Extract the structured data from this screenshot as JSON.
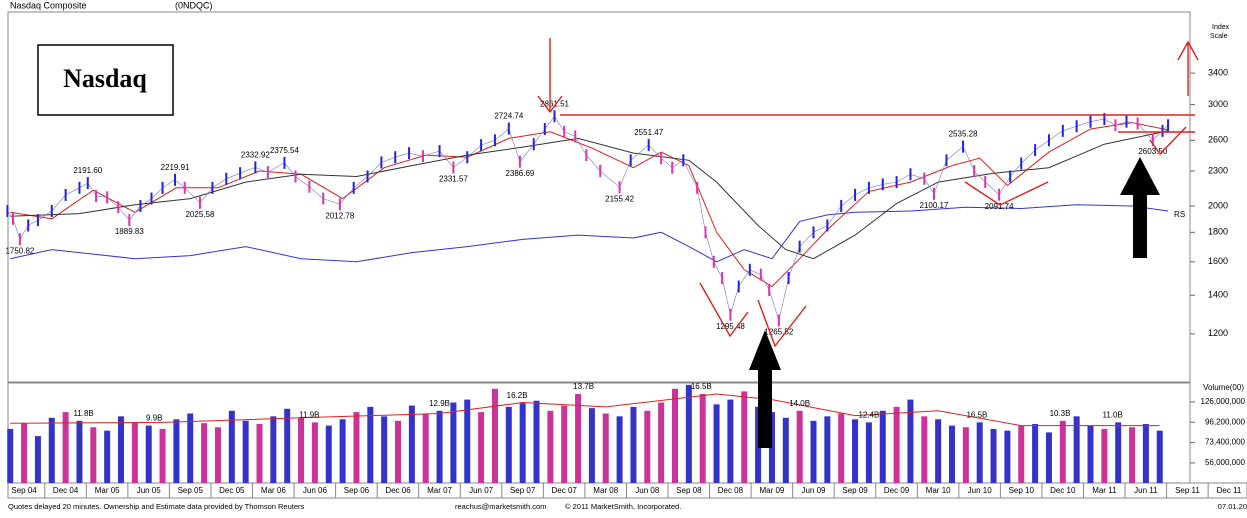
{
  "chart_data": {
    "type": "stock",
    "title": "Nasdaq Composite",
    "symbol": "(0NDQC)",
    "badge": "Nasdaq",
    "y_axis_label": [
      "Index",
      "Scale"
    ],
    "log_scale": true,
    "xlim": [
      -1.16,
      88.3
    ],
    "xticks": [
      {
        "value": 0,
        "label": "Sep 04"
      },
      {
        "value": 3,
        "label": "Dec 04"
      },
      {
        "value": 6,
        "label": "Mar 05"
      },
      {
        "value": 9,
        "label": "Jun 05"
      },
      {
        "value": 12,
        "label": "Sep 05"
      },
      {
        "value": 15,
        "label": "Dec 05"
      },
      {
        "value": 18,
        "label": "Mar 06"
      },
      {
        "value": 21,
        "label": "Jun 06"
      },
      {
        "value": 24,
        "label": "Sep 06"
      },
      {
        "value": 27,
        "label": "Dec 06"
      },
      {
        "value": 30,
        "label": "Mar 07"
      },
      {
        "value": 33,
        "label": "Jun 07"
      },
      {
        "value": 36,
        "label": "Sep 07"
      },
      {
        "value": 39,
        "label": "Dec 07"
      },
      {
        "value": 42,
        "label": "Mar 08"
      },
      {
        "value": 45,
        "label": "Jun 08"
      },
      {
        "value": 48,
        "label": "Sep 08"
      },
      {
        "value": 51,
        "label": "Dec 08"
      },
      {
        "value": 54,
        "label": "Mar 09"
      },
      {
        "value": 57,
        "label": "Jun 09"
      },
      {
        "value": 60,
        "label": "Sep 09"
      },
      {
        "value": 63,
        "label": "Dec 09"
      },
      {
        "value": 66,
        "label": "Mar 10"
      },
      {
        "value": 69,
        "label": "Jun 10"
      },
      {
        "value": 72,
        "label": "Sep 10"
      },
      {
        "value": 75,
        "label": "Dec 10"
      },
      {
        "value": 78,
        "label": "Mar 11"
      },
      {
        "value": 81,
        "label": "Jun 11"
      },
      {
        "value": 84,
        "label": "Sep 11"
      },
      {
        "value": 87,
        "label": "Dec 11"
      }
    ],
    "ylim": [
      990,
      4340
    ],
    "yticks": [
      1200,
      1400,
      1600,
      1800,
      2000,
      2300,
      2600,
      3000,
      3400
    ],
    "price": {
      "up_color": "#2222dd",
      "down_color": "#dd33aa",
      "x": [
        -1.2,
        -0.8,
        -0.3,
        0.3,
        1,
        2,
        3,
        4,
        4.6,
        5.2,
        6,
        6.8,
        7.6,
        8.4,
        9.2,
        10,
        10.9,
        11.6,
        12.7,
        13.6,
        14.6,
        15.6,
        16.7,
        17.6,
        18.8,
        19.6,
        20.6,
        21.6,
        22.8,
        23.8,
        24.8,
        25.8,
        26.8,
        27.8,
        28.8,
        30,
        31,
        32,
        33,
        34,
        35,
        35.8,
        36.8,
        37.6,
        38.3,
        39,
        39.8,
        40.6,
        41.6,
        43,
        43.8,
        45.1,
        46,
        46.8,
        47.6,
        48.6,
        49.2,
        49.8,
        50.4,
        51,
        51.6,
        52.4,
        53.2,
        53.8,
        54.5,
        55.2,
        56,
        57,
        58,
        59,
        60,
        61,
        62,
        63,
        64,
        65,
        65.7,
        66.6,
        67.8,
        68.6,
        69.4,
        70.4,
        71.2,
        72,
        73,
        74,
        75,
        76,
        77,
        78,
        78.8,
        79.6,
        80.4,
        81.5,
        82.2,
        82.6
      ],
      "values": [
        1960,
        1900,
        1751,
        1850,
        1890,
        1960,
        2090,
        2150,
        2192,
        2080,
        2070,
        1990,
        1890,
        2000,
        2060,
        2150,
        2220,
        2150,
        2026,
        2150,
        2230,
        2280,
        2333,
        2290,
        2376,
        2250,
        2160,
        2060,
        2013,
        2150,
        2250,
        2380,
        2430,
        2470,
        2440,
        2490,
        2332,
        2430,
        2550,
        2600,
        2725,
        2387,
        2560,
        2720,
        2862,
        2690,
        2640,
        2450,
        2300,
        2155,
        2400,
        2552,
        2420,
        2330,
        2400,
        2150,
        1800,
        1600,
        1500,
        1295,
        1450,
        1550,
        1520,
        1430,
        1266,
        1500,
        1700,
        1800,
        1850,
        2000,
        2090,
        2150,
        2180,
        2200,
        2270,
        2230,
        2100,
        2400,
        2535,
        2300,
        2200,
        2092,
        2250,
        2370,
        2500,
        2600,
        2700,
        2750,
        2800,
        2830,
        2760,
        2800,
        2780,
        2604,
        2700,
        2760
      ]
    },
    "moving_averages": [
      {
        "color": "#e02020",
        "x": [
          -1,
          2,
          5,
          8,
          11,
          14,
          17,
          20,
          23,
          26,
          29,
          32,
          35,
          38,
          41,
          44,
          46,
          48,
          50,
          52,
          54,
          56,
          58,
          61,
          64,
          67,
          69,
          71,
          74,
          77,
          80,
          82.6
        ],
        "values": [
          1950,
          1900,
          2130,
          1950,
          2150,
          2150,
          2300,
          2270,
          2060,
          2330,
          2450,
          2430,
          2620,
          2690,
          2520,
          2330,
          2480,
          2350,
          1800,
          1550,
          1450,
          1620,
          1820,
          2120,
          2200,
          2350,
          2420,
          2170,
          2480,
          2720,
          2790,
          2710
        ]
      },
      {
        "color": "#333333",
        "x": [
          -1,
          4,
          8,
          12,
          16,
          20,
          24,
          28,
          32,
          36,
          40,
          44,
          48,
          50,
          53,
          55,
          57,
          60,
          63,
          66,
          70,
          74,
          78,
          82.6
        ],
        "values": [
          1920,
          1940,
          2010,
          2060,
          2200,
          2270,
          2250,
          2350,
          2450,
          2530,
          2620,
          2470,
          2400,
          2200,
          1850,
          1680,
          1620,
          1780,
          2020,
          2200,
          2280,
          2330,
          2560,
          2700
        ]
      }
    ],
    "rs": {
      "label": "RS",
      "color": "#3333dd",
      "x": [
        -1,
        2,
        5,
        8,
        12,
        16,
        20,
        24,
        28,
        32,
        36,
        40,
        44,
        46,
        48,
        50,
        52,
        54,
        56,
        58,
        60,
        64,
        68,
        72,
        76,
        80,
        82.6
      ],
      "values": [
        1620,
        1680,
        1650,
        1620,
        1640,
        1700,
        1620,
        1600,
        1660,
        1700,
        1750,
        1780,
        1760,
        1800,
        1700,
        1600,
        1680,
        1620,
        1880,
        1930,
        1950,
        1960,
        1990,
        1980,
        2010,
        2000,
        1960
      ]
    },
    "annotations": [
      {
        "label": "1750.82",
        "x": -0.3,
        "value": 1750.82,
        "pos": "below"
      },
      {
        "label": "2191.60",
        "x": 4.6,
        "value": 2191.6,
        "pos": "above"
      },
      {
        "label": "1889.83",
        "x": 7.6,
        "value": 1889.83,
        "pos": "below"
      },
      {
        "label": "2219.91",
        "x": 10.9,
        "value": 2219.91,
        "pos": "above"
      },
      {
        "label": "2025.58",
        "x": 12.7,
        "value": 2025.58,
        "pos": "below"
      },
      {
        "label": "2332.92",
        "x": 16.7,
        "value": 2332.92,
        "pos": "above"
      },
      {
        "label": "2375.54",
        "x": 18.8,
        "value": 2375.54,
        "pos": "above"
      },
      {
        "label": "2012.78",
        "x": 22.8,
        "value": 2012.78,
        "pos": "below"
      },
      {
        "label": "2331.57",
        "x": 31,
        "value": 2331.57,
        "pos": "below"
      },
      {
        "label": "2724.74",
        "x": 35,
        "value": 2724.74,
        "pos": "above"
      },
      {
        "label": "2386.69",
        "x": 35.8,
        "value": 2386.69,
        "pos": "below"
      },
      {
        "label": "2861.51",
        "x": 38.3,
        "value": 2861.51,
        "pos": "above"
      },
      {
        "label": "2155.42",
        "x": 43,
        "value": 2155.42,
        "pos": "below"
      },
      {
        "label": "2551.47",
        "x": 45.1,
        "value": 2551.47,
        "pos": "above"
      },
      {
        "label": "1295.48",
        "x": 51,
        "value": 1295.48,
        "pos": "below"
      },
      {
        "label": "1265.52",
        "x": 54.5,
        "value": 1265.52,
        "pos": "below"
      },
      {
        "label": "2100.17",
        "x": 65.7,
        "value": 2100.17,
        "pos": "below"
      },
      {
        "label": "2535.28",
        "x": 67.8,
        "value": 2535.28,
        "pos": "above"
      },
      {
        "label": "2091.74",
        "x": 70.4,
        "value": 2091.74,
        "pos": "below"
      },
      {
        "label": "2603.50",
        "x": 81.5,
        "value": 2603.5,
        "pos": "below"
      }
    ],
    "volume": {
      "axis_label": "Volume(00)",
      "up_color": "#3333cc",
      "down_color": "#cc3399",
      "ylim": [
        42900000,
        162000000
      ],
      "yticks": [
        {
          "value": 56000000,
          "label": "56,000,000"
        },
        {
          "value": 73400000,
          "label": "73,400,000"
        },
        {
          "value": 96200000,
          "label": "96,200,000"
        },
        {
          "value": 126000000,
          "label": "126,000,000"
        }
      ],
      "x0": -1,
      "values": [
        88000000,
        95000000,
        80000000,
        102000000,
        110000000,
        98000000,
        90000000,
        86000000,
        104000000,
        96000000,
        92000000,
        88000000,
        100000000,
        108000000,
        95000000,
        90000000,
        112000000,
        98000000,
        94000000,
        104000000,
        115000000,
        102000000,
        96000000,
        92000000,
        100000000,
        110000000,
        118000000,
        104000000,
        98000000,
        120000000,
        108000000,
        112000000,
        125000000,
        130000000,
        110000000,
        150000000,
        118000000,
        124000000,
        128000000,
        112000000,
        120000000,
        140000000,
        116000000,
        108000000,
        104000000,
        118000000,
        112000000,
        125000000,
        150000000,
        158000000,
        140000000,
        122000000,
        130000000,
        145000000,
        118000000,
        110000000,
        102000000,
        112000000,
        98000000,
        104000000,
        108000000,
        100000000,
        96000000,
        112000000,
        118000000,
        130000000,
        104000000,
        100000000,
        92000000,
        90000000,
        96000000,
        88000000,
        86000000,
        92000000,
        94000000,
        84000000,
        98000000,
        104000000,
        92000000,
        88000000,
        96000000,
        90000000,
        94000000,
        86000000
      ],
      "up": [
        true,
        false,
        true,
        true,
        false,
        true,
        false,
        true,
        true,
        false,
        true,
        false,
        true,
        true,
        false,
        false,
        true,
        true,
        false,
        true,
        true,
        false,
        false,
        true,
        true,
        false,
        true,
        true,
        false,
        true,
        false,
        true,
        true,
        true,
        false,
        false,
        true,
        true,
        true,
        false,
        false,
        false,
        true,
        false,
        true,
        true,
        false,
        false,
        false,
        true,
        false,
        true,
        true,
        false,
        true,
        true,
        true,
        false,
        true,
        true,
        false,
        true,
        true,
        true,
        false,
        true,
        false,
        true,
        true,
        false,
        true,
        true,
        true,
        false,
        true,
        true,
        false,
        true,
        true,
        false,
        true,
        false,
        true,
        true
      ],
      "ma": {
        "color": "#e02020",
        "x": [
          -1,
          10,
          20,
          30,
          36,
          42,
          50,
          54,
          60,
          66,
          72,
          82
        ],
        "values": [
          95000000,
          96000000,
          102000000,
          108000000,
          125000000,
          118000000,
          140000000,
          130000000,
          105000000,
          112000000,
          92000000,
          92000000
        ]
      },
      "annotations": [
        {
          "label": "11.8B",
          "x": 4.3
        },
        {
          "label": "9.9B",
          "x": 9.4
        },
        {
          "label": "11.9B",
          "x": 20.6
        },
        {
          "label": "12.9B",
          "x": 30
        },
        {
          "label": "16.2B",
          "x": 35.6
        },
        {
          "label": "13.7B",
          "x": 40.4
        },
        {
          "label": "16.5B",
          "x": 48.9
        },
        {
          "label": "14.0B",
          "x": 56
        },
        {
          "label": "12.4B",
          "x": 61
        },
        {
          "label": "16.5B",
          "x": 68.8
        },
        {
          "label": "10.3B",
          "x": 74.8
        },
        {
          "label": "11.0B",
          "x": 78.6
        }
      ]
    },
    "footer": [
      "Quotes delayed 20 minutes. Ownership and Estimate data provided by Thomson Reuters",
      "reachus@marketsmith.com",
      "© 2011 MarketSmith, Incorporated.",
      "07.01.20"
    ]
  }
}
